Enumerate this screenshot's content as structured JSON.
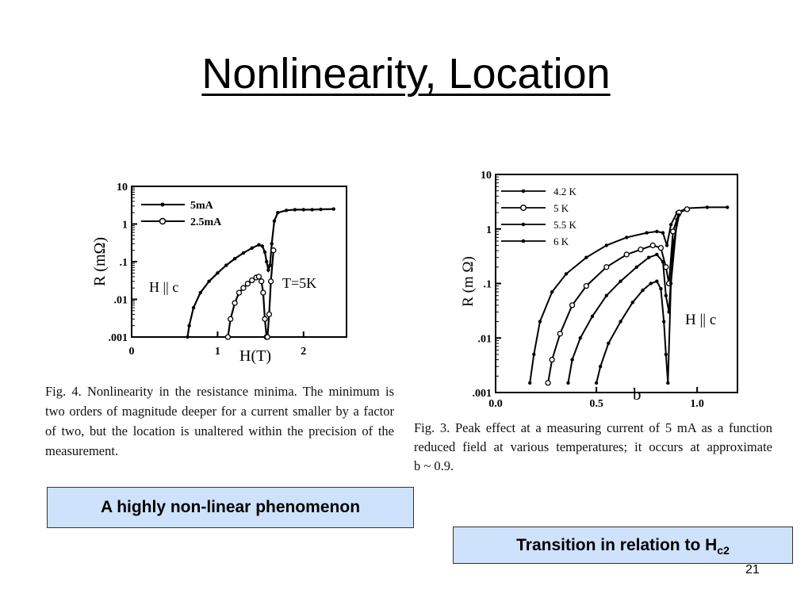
{
  "slide": {
    "title": "Nonlinearity, Location",
    "box_left": "A highly non-linear phenomenon",
    "box_right_main": "Transition in relation to H",
    "box_right_sub": "c2",
    "page_number": "21"
  },
  "captions": {
    "fig4_lines": [
      "Fig. 4. Nonlinearity in the resistance minima. The minimum is",
      "two orders of magnitude deeper for a current smaller by a factor",
      "of two, but the location is unaltered within the precision of the",
      "measurement."
    ],
    "fig3_lines": [
      "Fig. 3. Peak effect at a measuring current of 5 mA as a function",
      "reduced field at various temperatures; it occurs at approximate",
      "b ~ 0.9."
    ]
  },
  "chart_data": [
    {
      "type": "line",
      "xlabel": "H(T)",
      "ylabel": "R (mΩ)",
      "log_y": true,
      "xlim": [
        0,
        2.5
      ],
      "ylim": [
        0.001,
        10
      ],
      "xticks": [
        "0",
        "1",
        "2"
      ],
      "yticks": [
        "10",
        "1",
        ".1",
        ".01",
        ".001"
      ],
      "annotations": [
        "H || c",
        "T=5K"
      ],
      "legend_position": "top-left",
      "series": [
        {
          "name": "5mA",
          "marker": "dot",
          "x": [
            0.65,
            0.67,
            0.72,
            0.8,
            0.9,
            1.0,
            1.1,
            1.2,
            1.3,
            1.4,
            1.48,
            1.52,
            1.55,
            1.57,
            1.59,
            1.61,
            1.63,
            1.66,
            1.7,
            1.8,
            1.9,
            2.0,
            2.1,
            2.2,
            2.35
          ],
          "y": [
            0.001,
            0.002,
            0.006,
            0.015,
            0.03,
            0.05,
            0.08,
            0.12,
            0.17,
            0.23,
            0.28,
            0.26,
            0.18,
            0.1,
            0.06,
            0.08,
            0.3,
            1.2,
            2.0,
            2.3,
            2.4,
            2.4,
            2.4,
            2.45,
            2.5
          ]
        },
        {
          "name": "2.5mA",
          "marker": "circle",
          "x": [
            1.12,
            1.15,
            1.2,
            1.25,
            1.3,
            1.35,
            1.4,
            1.45,
            1.48,
            1.51,
            1.53,
            1.55,
            1.57,
            1.58,
            1.6,
            1.62,
            1.65
          ],
          "y": [
            0.001,
            0.003,
            0.008,
            0.015,
            0.02,
            0.026,
            0.032,
            0.038,
            0.04,
            0.03,
            0.015,
            0.003,
            0.001,
            0.001,
            0.004,
            0.03,
            0.2
          ]
        }
      ]
    },
    {
      "type": "line",
      "xlabel": "b",
      "ylabel": "R (m Ω)",
      "log_y": true,
      "xlim": [
        0,
        1.2
      ],
      "ylim": [
        0.001,
        10
      ],
      "xticks": [
        "0.0",
        "0.5",
        "1.0"
      ],
      "yticks": [
        "10",
        "1",
        ".1",
        ".01",
        ".001"
      ],
      "annotations": [
        "H || c"
      ],
      "legend_position": "top-left",
      "series": [
        {
          "name": "4.2 K",
          "marker": "dot",
          "x": [
            0.17,
            0.19,
            0.22,
            0.28,
            0.35,
            0.45,
            0.55,
            0.65,
            0.75,
            0.8,
            0.83,
            0.85,
            0.87,
            0.9,
            0.95,
            1.05,
            1.15
          ],
          "y": [
            0.0015,
            0.005,
            0.02,
            0.07,
            0.15,
            0.3,
            0.5,
            0.7,
            0.85,
            0.9,
            0.85,
            0.5,
            1.2,
            2.0,
            2.4,
            2.5,
            2.5
          ]
        },
        {
          "name": "5 K",
          "marker": "circle",
          "x": [
            0.26,
            0.28,
            0.32,
            0.38,
            0.45,
            0.55,
            0.65,
            0.72,
            0.78,
            0.82,
            0.845,
            0.86,
            0.88,
            0.91,
            0.95
          ],
          "y": [
            0.0015,
            0.004,
            0.012,
            0.04,
            0.09,
            0.2,
            0.34,
            0.42,
            0.5,
            0.45,
            0.2,
            0.1,
            0.9,
            2.0,
            2.3
          ]
        },
        {
          "name": "5.5 K",
          "marker": "dot",
          "x": [
            0.36,
            0.38,
            0.42,
            0.48,
            0.55,
            0.62,
            0.7,
            0.76,
            0.8,
            0.83,
            0.845,
            0.86,
            0.88,
            0.91
          ],
          "y": [
            0.0015,
            0.004,
            0.01,
            0.025,
            0.06,
            0.11,
            0.2,
            0.3,
            0.34,
            0.25,
            0.06,
            0.03,
            0.5,
            1.8
          ]
        },
        {
          "name": "6 K",
          "marker": "dot",
          "x": [
            0.5,
            0.52,
            0.56,
            0.62,
            0.68,
            0.73,
            0.77,
            0.8,
            0.82,
            0.835,
            0.845,
            0.855,
            0.87,
            0.9
          ],
          "y": [
            0.0015,
            0.003,
            0.008,
            0.02,
            0.045,
            0.075,
            0.1,
            0.11,
            0.08,
            0.02,
            0.005,
            0.0015,
            0.1,
            1.5
          ]
        }
      ]
    }
  ]
}
